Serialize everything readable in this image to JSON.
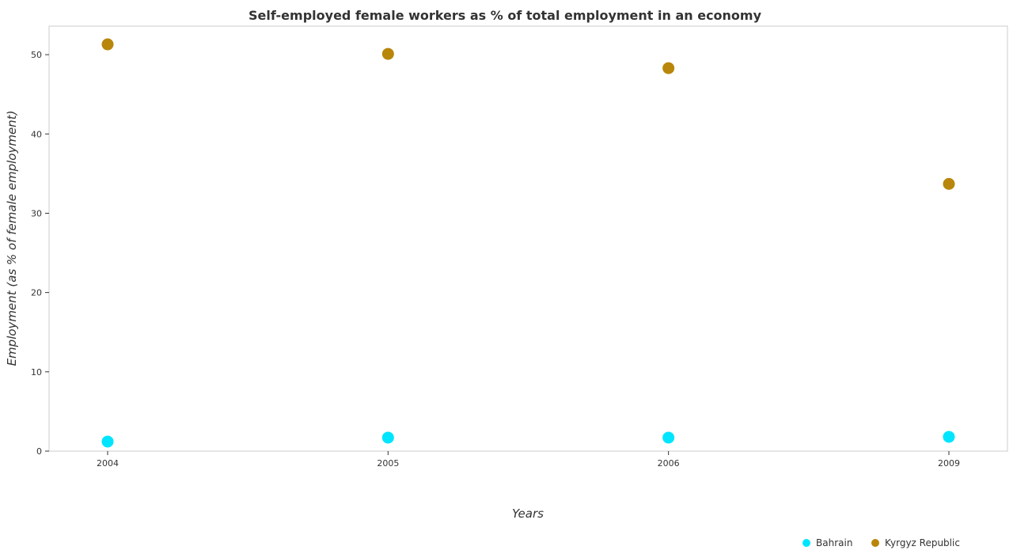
{
  "chart_data": {
    "type": "scatter",
    "title": "Self-employed female workers as % of total employment in an economy",
    "xlabel": "Years",
    "ylabel": "Employment (as % of female employment)",
    "categories": [
      "2004",
      "2005",
      "2006",
      "2009"
    ],
    "ylim": [
      0,
      53.6
    ],
    "yticks": [
      0,
      10,
      20,
      30,
      40,
      50
    ],
    "grid": false,
    "legend_position": "bottom-right",
    "series": [
      {
        "name": "Bahrain",
        "color": "#00e5ff",
        "values": [
          1.2,
          1.7,
          1.7,
          1.8
        ]
      },
      {
        "name": "Kyrgyz Republic",
        "color": "#b8860b",
        "values": [
          51.3,
          50.1,
          48.3,
          33.7
        ]
      }
    ]
  }
}
